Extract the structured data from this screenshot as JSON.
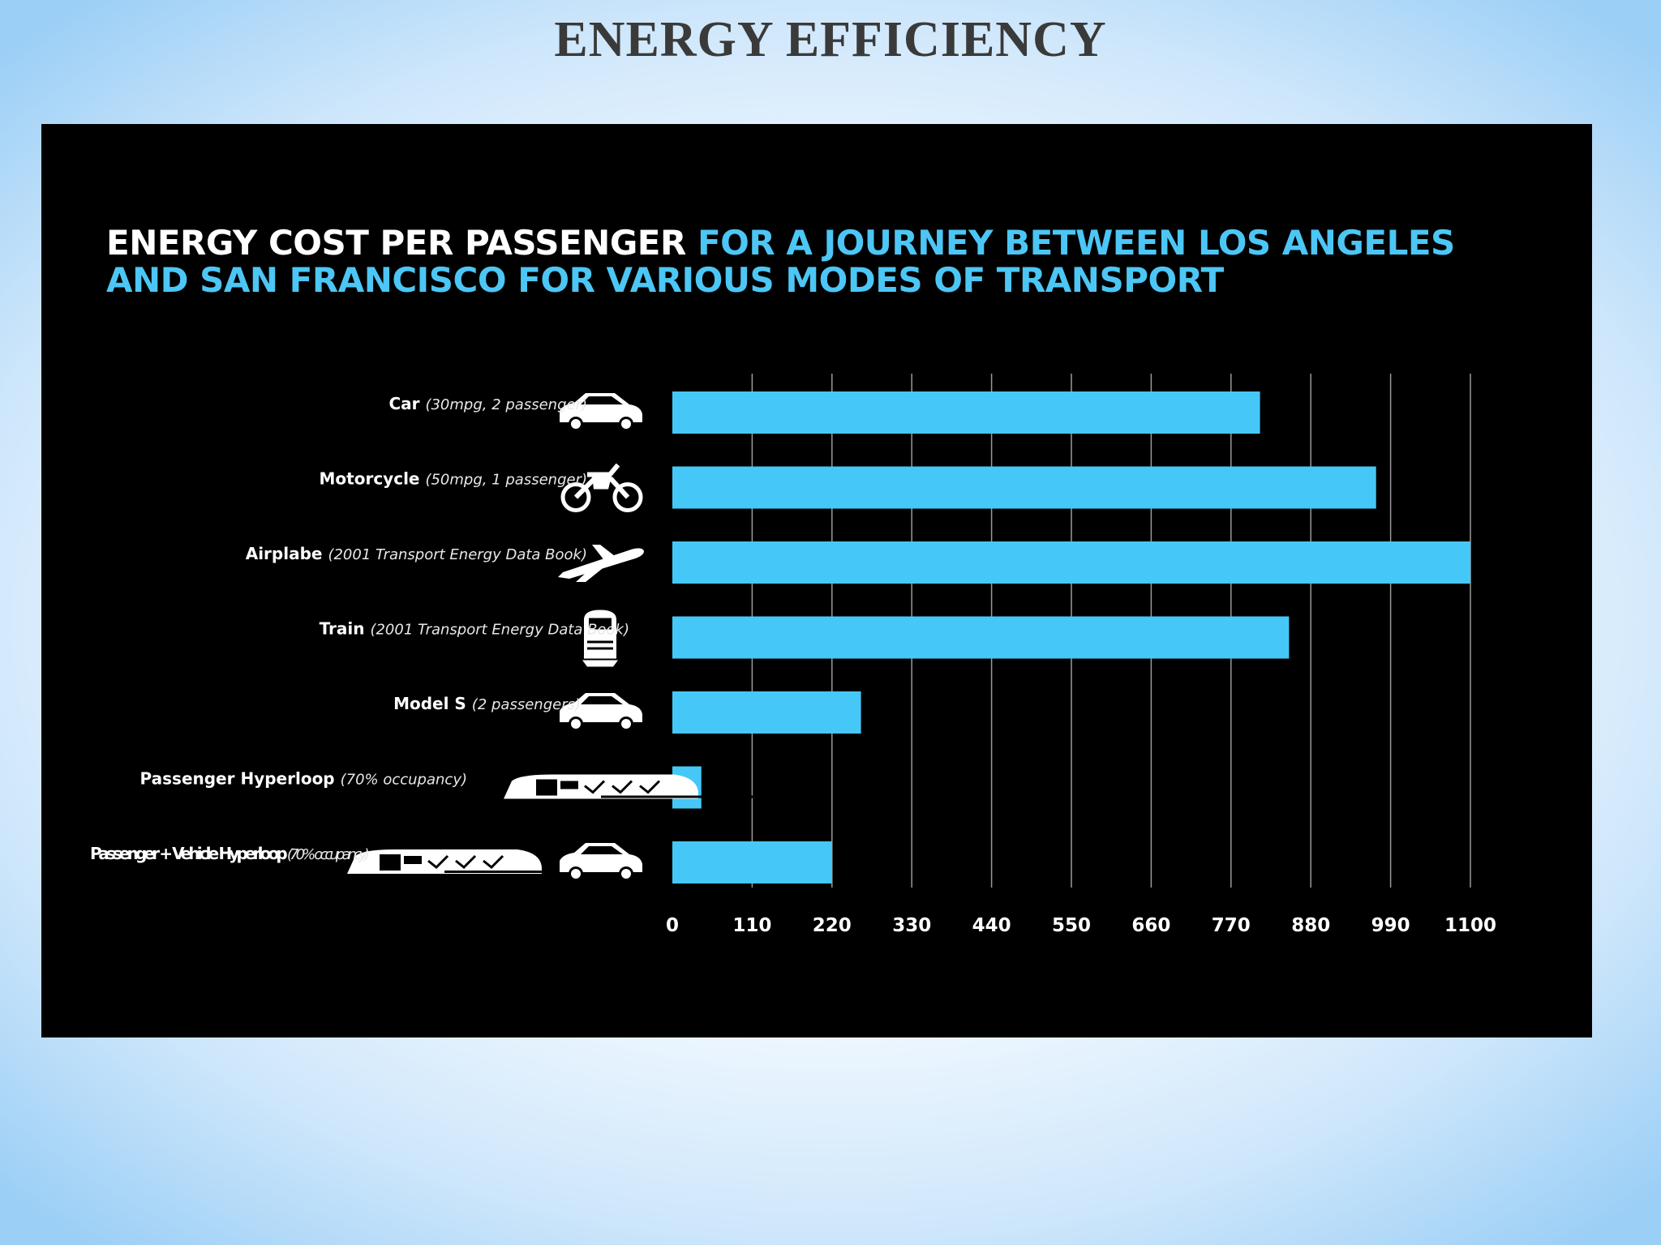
{
  "slide": {
    "title": "ENERGY EFFICIENCY"
  },
  "chart_data": {
    "type": "bar",
    "orientation": "horizontal",
    "title": {
      "part1": "ENERGY COST PER PASSENGER",
      "part2": "FOR A JOURNEY BETWEEN LOS ANGELES AND SAN FRANCISCO FOR VARIOUS MODES OF TRANSPORT"
    },
    "categories": [
      {
        "name": "Car",
        "note": "(30mpg, 2 passenger)",
        "icon": "car-icon"
      },
      {
        "name": "Motorcycle",
        "note": "(50mpg, 1 passenger)",
        "icon": "motorcycle-icon"
      },
      {
        "name": "Airplabe",
        "note": "(2001 Transport Energy Data Book)",
        "icon": "airplane-icon"
      },
      {
        "name": "Train",
        "note": "(2001 Transport Energy Data Book)",
        "icon": "train-icon"
      },
      {
        "name": "Model S",
        "note": "(2 passengers)",
        "icon": "car-icon"
      },
      {
        "name": "Passenger Hyperloop",
        "note": "(70% occupancy)",
        "icon": "hyperloop-pod-icon"
      },
      {
        "name": "Passenger + Vehicle Hyperloop",
        "note": "(70% occupancy)",
        "icon": "hyperloop-pod-with-car-icon"
      }
    ],
    "values": [
      810,
      970,
      1100,
      850,
      260,
      40,
      220
    ],
    "xlim": [
      0,
      1100
    ],
    "xticks": [
      0,
      110,
      220,
      330,
      440,
      550,
      660,
      770,
      880,
      990,
      1100
    ],
    "grid": true,
    "colors": {
      "bar": "#45c8f7",
      "background": "#000000",
      "title_highlight": "#4cc6f5",
      "gridline": "#9a9a9a"
    }
  }
}
